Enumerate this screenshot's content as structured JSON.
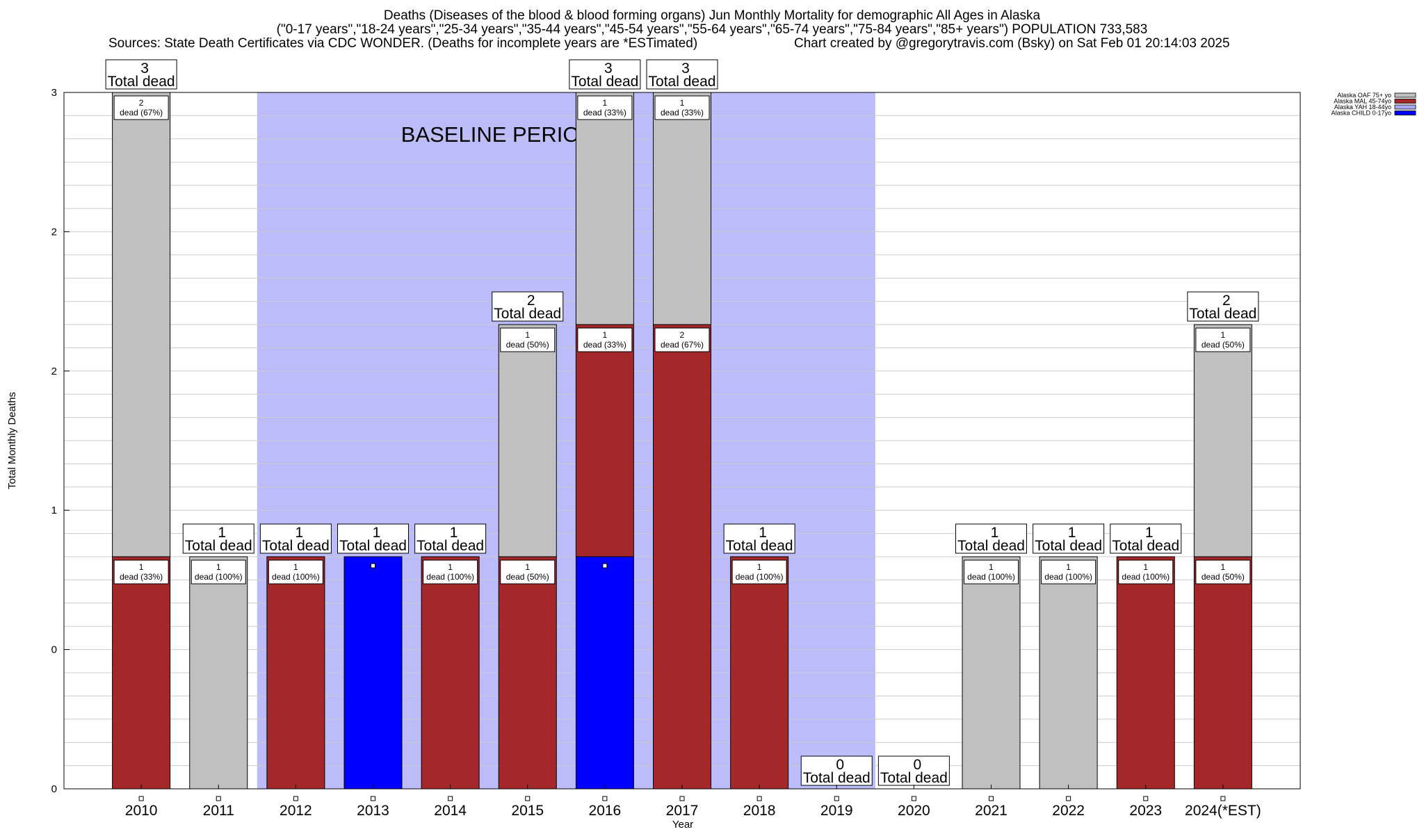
{
  "title": {
    "line1": "Deaths (Diseases of the blood & blood forming organs) Jun Monthly Mortality for demographic All Ages in Alaska",
    "line2": "(\"0-17 years\",\"18-24 years\",\"25-34 years\",\"35-44 years\",\"45-54 years\",\"55-64 years\",\"65-74 years\",\"75-84 years\",\"85+ years\") POPULATION 733,583",
    "line3_left": "Sources: State Death Certificates via CDC WONDER. (Deaths for incomplete years are *ESTimated)",
    "line3_right": "Chart created by @gregorytravis.com (Bsky) on Sat Feb 01 20:14:03 2025"
  },
  "chart_data": {
    "type": "bar",
    "stacked": true,
    "xlabel": "Year",
    "ylabel": "Total Monthly Deaths",
    "ylim": [
      0,
      3
    ],
    "ytick_labels": [
      "0",
      "0",
      "1",
      "2",
      "2",
      "3"
    ],
    "grid": true,
    "legend_position": "top-right",
    "categories": [
      "2010",
      "2011",
      "2012",
      "2013",
      "2014",
      "2015",
      "2016",
      "2017",
      "2018",
      "2019",
      "2020",
      "2021",
      "2022",
      "2023",
      "2024(*EST)"
    ],
    "series": [
      {
        "name": "Alaska CHILD 0-17yo",
        "color": "#0000ff",
        "values": [
          0,
          0,
          0,
          1,
          0,
          0,
          1,
          0,
          0,
          0,
          0,
          0,
          0,
          0,
          0
        ]
      },
      {
        "name": "Alaska YAH 18-44yo",
        "color": "#a9a9f8",
        "values": [
          0,
          0,
          0,
          0,
          0,
          0,
          0,
          0,
          0,
          0,
          0,
          0,
          0,
          0,
          0
        ]
      },
      {
        "name": "Alaska MAL 45-74yo",
        "color": "#a4282a",
        "values": [
          1,
          0,
          1,
          0,
          1,
          1,
          1,
          2,
          1,
          0,
          0,
          0,
          0,
          1,
          1
        ]
      },
      {
        "name": "Alaska OAF 75+ yo",
        "color": "#c0c0c0",
        "values": [
          2,
          1,
          0,
          0,
          0,
          1,
          1,
          1,
          0,
          0,
          0,
          1,
          1,
          0,
          1
        ]
      }
    ],
    "totals": [
      3,
      1,
      1,
      1,
      1,
      2,
      3,
      3,
      1,
      0,
      0,
      1,
      1,
      1,
      2
    ],
    "segment_labels": [
      [
        {
          "n": "1",
          "t": "dead (33%)"
        },
        {
          "n": "2",
          "t": "dead (67%)"
        }
      ],
      [
        {
          "n": "1",
          "t": "dead (100%)"
        }
      ],
      [
        {
          "n": "1",
          "t": "dead (100%)"
        }
      ],
      [],
      [
        {
          "n": "1",
          "t": "dead (100%)"
        }
      ],
      [
        {
          "n": "1",
          "t": "dead (50%)"
        },
        {
          "n": "1",
          "t": "dead (50%)"
        }
      ],
      [
        {
          "n": "1",
          "t": "dead (33%)"
        },
        {
          "n": "1",
          "t": "dead (33%)"
        }
      ],
      [
        {
          "n": "2",
          "t": "dead (67%)"
        },
        {
          "n": "1",
          "t": "dead (33%)"
        }
      ],
      [
        {
          "n": "1",
          "t": "dead (100%)"
        }
      ],
      [],
      [],
      [
        {
          "n": "1",
          "t": "dead (100%)"
        }
      ],
      [
        {
          "n": "1",
          "t": "dead (100%)"
        }
      ],
      [
        {
          "n": "1",
          "t": "dead (100%)"
        }
      ],
      [
        {
          "n": "1",
          "t": "dead (50%)"
        },
        {
          "n": "1",
          "t": "dead (50%)"
        }
      ]
    ],
    "total_label_suffix": "Total dead",
    "baseline": {
      "label": "BASELINE PERIOD",
      "from": "2012",
      "to": "2019",
      "color": "#bcbcfb"
    }
  }
}
